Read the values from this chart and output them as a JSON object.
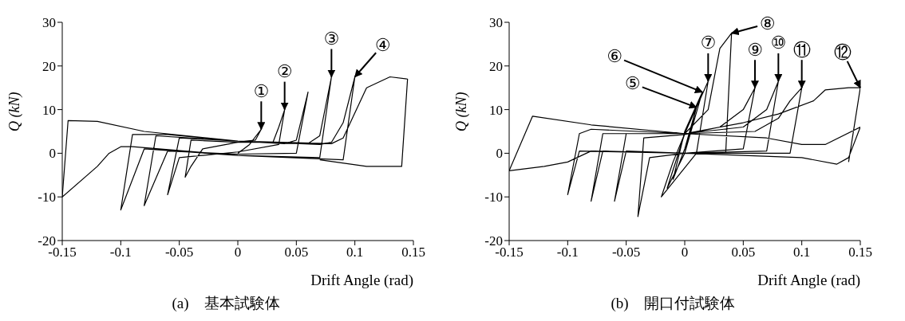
{
  "chart_data": [
    {
      "type": "line",
      "title": "(a)　基本試験体",
      "xlabel": "Drift Angle (rad)",
      "ylabel": "Q (kN)",
      "xlim": [
        -0.15,
        0.15
      ],
      "xticks": [
        -0.15,
        -0.1,
        -0.05,
        0,
        0.05,
        0.1,
        0.15
      ],
      "ylim": [
        -20,
        30
      ],
      "yticks": [
        -20,
        -10,
        0,
        10,
        20,
        30
      ],
      "series": [
        {
          "color": "#000000",
          "x": [
            0,
            0.01,
            0.02,
            0.015,
            0,
            -0.02,
            -0.03,
            -0.04,
            -0.045,
            -0.04,
            0,
            0.03,
            0.035,
            0.04,
            0.035,
            0,
            -0.05,
            -0.06,
            -0.05,
            0,
            0.04,
            0.05,
            0.06,
            0.05,
            0,
            -0.06,
            -0.08,
            -0.07,
            0,
            0.06,
            0.07,
            0.08,
            0.07,
            0,
            -0.08,
            -0.1,
            -0.09,
            -0.06,
            0,
            0.07,
            0.08,
            0.09,
            0.1,
            0.09,
            0,
            -0.09,
            -0.1,
            -0.11,
            -0.12,
            -0.15,
            -0.145,
            -0.12,
            -0.08,
            0,
            0.08,
            0.09,
            0.11,
            0.13,
            0.145,
            0.14,
            0.11,
            0.07
          ],
          "values": [
            0,
            2,
            5.5,
            3,
            2.5,
            1.5,
            1,
            -3,
            -5.5,
            3,
            2.5,
            2.5,
            6,
            10,
            2,
            0.3,
            -1,
            -9.5,
            3.5,
            2.8,
            2.2,
            3,
            14,
            0,
            -0.2,
            0.5,
            -12,
            4,
            2.8,
            2.2,
            4,
            17.5,
            -1,
            -0.5,
            1,
            -13,
            4.3,
            4.3,
            2.8,
            2,
            2.5,
            7,
            17.5,
            -1.5,
            -0.5,
            1.5,
            1.5,
            0,
            -3,
            -10,
            7.5,
            7.3,
            5,
            2.8,
            2.2,
            3.5,
            15,
            17.5,
            17,
            -3,
            -3,
            -1.5
          ]
        }
      ],
      "annotations": [
        {
          "text": "①",
          "x": 0.02,
          "y": 5.5
        },
        {
          "text": "②",
          "x": 0.04,
          "y": 10
        },
        {
          "text": "③",
          "x": 0.08,
          "y": 17.5
        },
        {
          "text": "④",
          "x": 0.1,
          "y": 17.5
        }
      ]
    },
    {
      "type": "line",
      "title": "(b)　開口付試験体",
      "xlabel": "Drift Angle (rad)",
      "ylabel": "Q (kN)",
      "xlim": [
        -0.15,
        0.15
      ],
      "xticks": [
        -0.15,
        -0.1,
        -0.05,
        0,
        0.05,
        0.1,
        0.15
      ],
      "ylim": [
        -20,
        30
      ],
      "yticks": [
        -20,
        -10,
        0,
        10,
        20,
        30
      ],
      "series": [
        {
          "color": "#000000",
          "x": [
            0,
            0.01,
            0,
            -0.01,
            0,
            0.015,
            0,
            -0.015,
            0,
            0.02,
            0.01,
            -0.02,
            -0.01,
            0,
            0.02,
            0.03,
            0.04,
            0.035,
            0,
            -0.03,
            -0.04,
            -0.035,
            0,
            0.03,
            0.05,
            0.06,
            0.05,
            0,
            -0.05,
            -0.06,
            -0.05,
            0,
            0.05,
            0.07,
            0.08,
            0.07,
            0,
            -0.07,
            -0.08,
            -0.07,
            0,
            0.06,
            0.08,
            0.09,
            0.1,
            0.09,
            0,
            -0.09,
            -0.1,
            -0.09,
            -0.08,
            0,
            0.07,
            0.1,
            0.12,
            0.15,
            0.14,
            0.13,
            0.1,
            0,
            -0.08,
            -0.1,
            -0.12,
            -0.15,
            -0.13,
            -0.08,
            0,
            0.05,
            0.08,
            0.11,
            0.12,
            0.14,
            0.15,
            0.14
          ],
          "values": [
            0,
            10.5,
            1,
            -6,
            5,
            14,
            0,
            -8,
            4.5,
            16.5,
            0,
            -10,
            -2,
            4.5,
            10,
            24,
            27.5,
            0,
            0,
            -1,
            -14.5,
            3.5,
            4.3,
            6,
            10,
            15,
            1,
            0,
            0.5,
            -11,
            4.5,
            4.5,
            6,
            10,
            16.5,
            0.5,
            0,
            0.5,
            -11,
            4.5,
            4.5,
            5,
            8,
            12,
            15,
            0,
            0,
            0.5,
            -9.5,
            4.5,
            5.5,
            4.5,
            3.5,
            2,
            2,
            6,
            -1,
            -2.5,
            -1,
            0,
            0.5,
            -2,
            -3,
            -4,
            8.5,
            6.5,
            4.5,
            7,
            9,
            12,
            14.5,
            15,
            15,
            -2
          ]
        }
      ],
      "annotations": [
        {
          "text": "⑤",
          "x": 0.01,
          "y": 10.5
        },
        {
          "text": "⑥",
          "x": 0.015,
          "y": 14
        },
        {
          "text": "⑦",
          "x": 0.02,
          "y": 16.5
        },
        {
          "text": "⑧",
          "x": 0.04,
          "y": 27.5
        },
        {
          "text": "⑨",
          "x": 0.06,
          "y": 15
        },
        {
          "text": "⑩",
          "x": 0.08,
          "y": 16.5
        },
        {
          "text": "⑪",
          "x": 0.1,
          "y": 15
        },
        {
          "text": "⑫",
          "x": 0.15,
          "y": 15
        }
      ]
    }
  ]
}
